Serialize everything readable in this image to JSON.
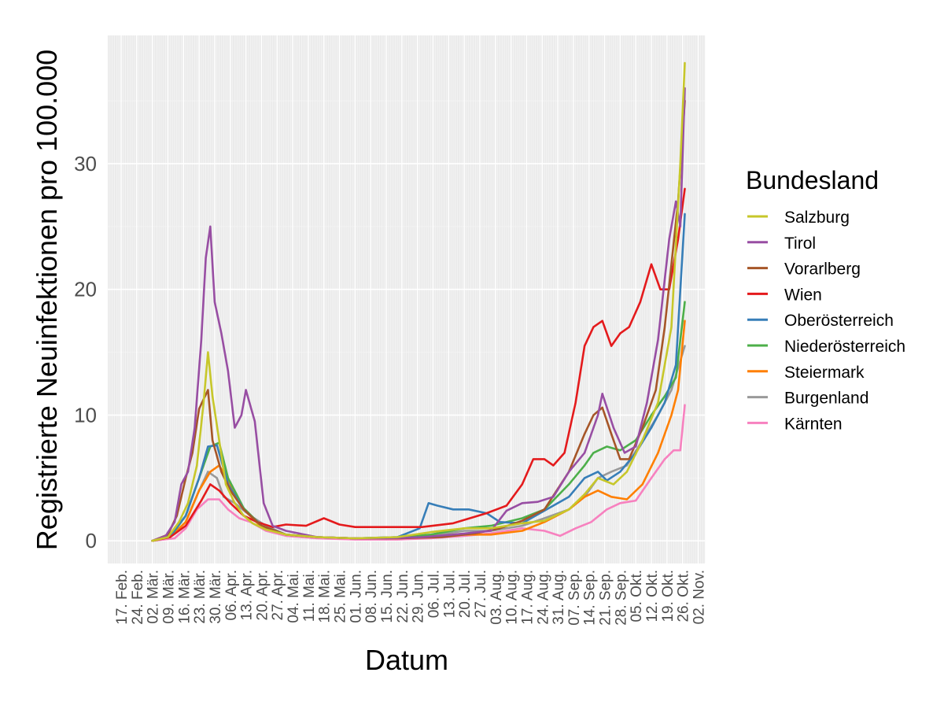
{
  "chart_data": {
    "type": "line",
    "title": "",
    "xlabel": "Datum",
    "ylabel": "Registrierte Neuinfektionen pro 100.000",
    "ylim": [
      -1.8,
      40.2
    ],
    "yticks": [
      0,
      10,
      20,
      30
    ],
    "xlim": [
      "2020-02-11",
      "2020-11-05"
    ],
    "xtick_labels": [
      "17. Feb.",
      "24. Feb.",
      "02. Mär.",
      "09. Mär.",
      "16. Mär.",
      "23. Mär.",
      "30. Mär.",
      "06. Apr.",
      "13. Apr.",
      "20. Apr.",
      "27. Apr.",
      "04. Mai.",
      "11. Mai.",
      "18. Mai.",
      "25. Mai.",
      "01. Jun.",
      "08. Jun.",
      "15. Jun.",
      "22. Jun.",
      "29. Jun.",
      "06. Jul.",
      "13. Jul.",
      "20. Jul.",
      "27. Jul.",
      "03. Aug.",
      "10. Aug.",
      "17. Aug.",
      "24. Aug.",
      "31. Aug.",
      "07. Sep.",
      "14. Sep.",
      "21. Sep.",
      "28. Sep.",
      "05. Okt.",
      "12. Okt.",
      "19. Okt.",
      "26. Okt.",
      "02. Nov."
    ],
    "xtick_dates": [
      "2020-02-17",
      "2020-02-24",
      "2020-03-02",
      "2020-03-09",
      "2020-03-16",
      "2020-03-23",
      "2020-03-30",
      "2020-04-06",
      "2020-04-13",
      "2020-04-20",
      "2020-04-27",
      "2020-05-04",
      "2020-05-11",
      "2020-05-18",
      "2020-05-25",
      "2020-06-01",
      "2020-06-08",
      "2020-06-15",
      "2020-06-22",
      "2020-06-29",
      "2020-07-06",
      "2020-07-13",
      "2020-07-20",
      "2020-07-27",
      "2020-08-03",
      "2020-08-10",
      "2020-08-17",
      "2020-08-24",
      "2020-08-31",
      "2020-09-07",
      "2020-09-14",
      "2020-09-21",
      "2020-09-28",
      "2020-10-05",
      "2020-10-12",
      "2020-10-19",
      "2020-10-26",
      "2020-11-02"
    ],
    "grid": true,
    "legend": {
      "title": "Bundesland",
      "position": "right"
    },
    "series": [
      {
        "name": "Salzburg",
        "color": "#c7c72a",
        "x": [
          "2020-03-02",
          "2020-03-09",
          "2020-03-14",
          "2020-03-18",
          "2020-03-22",
          "2020-03-25",
          "2020-03-27",
          "2020-03-29",
          "2020-04-01",
          "2020-04-04",
          "2020-04-08",
          "2020-04-12",
          "2020-04-16",
          "2020-04-22",
          "2020-05-01",
          "2020-05-15",
          "2020-06-01",
          "2020-06-20",
          "2020-07-05",
          "2020-07-20",
          "2020-08-01",
          "2020-08-15",
          "2020-08-25",
          "2020-09-05",
          "2020-09-12",
          "2020-09-18",
          "2020-09-25",
          "2020-10-01",
          "2020-10-08",
          "2020-10-15",
          "2020-10-21",
          "2020-10-25",
          "2020-10-27"
        ],
        "y": [
          0,
          0.3,
          1.5,
          3,
          6,
          11,
          15,
          11.5,
          8,
          4.5,
          3,
          2,
          1.4,
          0.9,
          0.5,
          0.3,
          0.2,
          0.3,
          0.7,
          1,
          1,
          1.4,
          1.6,
          2.5,
          3.7,
          5,
          4.5,
          5.5,
          8,
          11,
          17,
          30,
          38
        ]
      },
      {
        "name": "Tirol",
        "color": "#984ea3",
        "x": [
          "2020-03-02",
          "2020-03-08",
          "2020-03-12",
          "2020-03-15",
          "2020-03-18",
          "2020-03-21",
          "2020-03-24",
          "2020-03-26",
          "2020-03-28",
          "2020-03-30",
          "2020-04-02",
          "2020-04-05",
          "2020-04-08",
          "2020-04-11",
          "2020-04-13",
          "2020-04-17",
          "2020-04-21",
          "2020-04-25",
          "2020-05-01",
          "2020-05-15",
          "2020-06-01",
          "2020-06-15",
          "2020-07-01",
          "2020-07-15",
          "2020-08-01",
          "2020-08-08",
          "2020-08-15",
          "2020-08-22",
          "2020-08-29",
          "2020-09-05",
          "2020-09-12",
          "2020-09-18",
          "2020-09-20",
          "2020-09-25",
          "2020-09-30",
          "2020-10-05",
          "2020-10-10",
          "2020-10-15",
          "2020-10-20",
          "2020-10-23",
          "2020-10-25",
          "2020-10-27"
        ],
        "y": [
          0,
          0.4,
          1.5,
          4.5,
          5.5,
          9,
          16,
          22.5,
          25,
          19,
          16.5,
          13.5,
          9,
          10,
          12,
          9.5,
          3,
          1.2,
          0.8,
          0.3,
          0.2,
          0.2,
          0.3,
          0.5,
          0.8,
          2.4,
          3,
          3.1,
          3.5,
          5.5,
          7,
          10,
          11.7,
          9,
          7,
          7.5,
          11,
          16,
          24,
          27,
          25,
          36
        ]
      },
      {
        "name": "Vorarlberg",
        "color": "#a65628",
        "x": [
          "2020-03-02",
          "2020-03-09",
          "2020-03-13",
          "2020-03-17",
          "2020-03-20",
          "2020-03-23",
          "2020-03-27",
          "2020-03-29",
          "2020-04-02",
          "2020-04-06",
          "2020-04-12",
          "2020-04-20",
          "2020-05-01",
          "2020-05-15",
          "2020-06-01",
          "2020-06-20",
          "2020-07-10",
          "2020-07-25",
          "2020-08-05",
          "2020-08-15",
          "2020-08-25",
          "2020-09-05",
          "2020-09-12",
          "2020-09-16",
          "2020-09-20",
          "2020-09-24",
          "2020-09-28",
          "2020-10-02",
          "2020-10-08",
          "2020-10-14",
          "2020-10-18",
          "2020-10-21",
          "2020-10-24",
          "2020-10-27"
        ],
        "y": [
          0,
          0.5,
          2,
          5,
          7,
          10.5,
          12,
          8,
          5.5,
          4,
          2.5,
          1.2,
          0.5,
          0.3,
          0.2,
          0.2,
          0.3,
          0.6,
          1,
          1.6,
          2.5,
          5.5,
          8.5,
          10,
          10.6,
          8.5,
          6.5,
          6.5,
          9,
          12,
          17,
          22,
          27,
          35
        ]
      },
      {
        "name": "Wien",
        "color": "#e41a1c",
        "x": [
          "2020-03-02",
          "2020-03-10",
          "2020-03-17",
          "2020-03-24",
          "2020-03-28",
          "2020-04-01",
          "2020-04-06",
          "2020-04-12",
          "2020-04-18",
          "2020-04-25",
          "2020-05-01",
          "2020-05-10",
          "2020-05-18",
          "2020-05-25",
          "2020-06-01",
          "2020-06-15",
          "2020-06-25",
          "2020-07-01",
          "2020-07-15",
          "2020-07-30",
          "2020-08-08",
          "2020-08-15",
          "2020-08-20",
          "2020-08-25",
          "2020-08-29",
          "2020-09-03",
          "2020-09-08",
          "2020-09-12",
          "2020-09-16",
          "2020-09-20",
          "2020-09-24",
          "2020-09-28",
          "2020-10-02",
          "2020-10-07",
          "2020-10-12",
          "2020-10-16",
          "2020-10-20",
          "2020-10-24",
          "2020-10-27"
        ],
        "y": [
          0,
          0.3,
          1.2,
          3.2,
          4.5,
          4,
          3,
          2,
          1.5,
          1.1,
          1.3,
          1.2,
          1.8,
          1.3,
          1.1,
          1.1,
          1.1,
          1.1,
          1.4,
          2.2,
          2.8,
          4.5,
          6.5,
          6.5,
          6,
          7,
          11,
          15.5,
          17,
          17.5,
          15.5,
          16.5,
          17,
          19,
          22,
          20,
          20,
          24,
          28
        ]
      },
      {
        "name": "Oberösterreich",
        "color": "#377eb8",
        "x": [
          "2020-03-02",
          "2020-03-10",
          "2020-03-17",
          "2020-03-23",
          "2020-03-27",
          "2020-03-31",
          "2020-04-05",
          "2020-04-12",
          "2020-04-20",
          "2020-05-01",
          "2020-05-15",
          "2020-06-01",
          "2020-06-20",
          "2020-06-30",
          "2020-07-04",
          "2020-07-08",
          "2020-07-15",
          "2020-07-22",
          "2020-07-30",
          "2020-08-05",
          "2020-08-15",
          "2020-08-25",
          "2020-09-05",
          "2020-09-12",
          "2020-09-18",
          "2020-09-22",
          "2020-09-28",
          "2020-10-05",
          "2020-10-12",
          "2020-10-18",
          "2020-10-23",
          "2020-10-27"
        ],
        "y": [
          0,
          0.4,
          2,
          5,
          7.5,
          7.6,
          4.5,
          2.5,
          1.2,
          0.5,
          0.3,
          0.2,
          0.3,
          1,
          3,
          2.8,
          2.5,
          2.5,
          2.2,
          1.5,
          1.4,
          2.4,
          3.5,
          5,
          5.5,
          4.8,
          5.5,
          7,
          9,
          11,
          14,
          26
        ]
      },
      {
        "name": "Niederösterreich",
        "color": "#4daf4a",
        "x": [
          "2020-03-02",
          "2020-03-10",
          "2020-03-17",
          "2020-03-23",
          "2020-03-28",
          "2020-04-01",
          "2020-04-05",
          "2020-04-12",
          "2020-04-20",
          "2020-05-01",
          "2020-05-15",
          "2020-06-01",
          "2020-06-20",
          "2020-07-05",
          "2020-07-20",
          "2020-08-01",
          "2020-08-15",
          "2020-08-25",
          "2020-09-05",
          "2020-09-12",
          "2020-09-16",
          "2020-09-22",
          "2020-09-28",
          "2020-10-05",
          "2020-10-12",
          "2020-10-18",
          "2020-10-23",
          "2020-10-27"
        ],
        "y": [
          0,
          0.3,
          2,
          5,
          7.5,
          7.8,
          5,
          2.6,
          1.2,
          0.5,
          0.3,
          0.2,
          0.3,
          0.5,
          1,
          1.2,
          1.8,
          2.5,
          4.5,
          6,
          7,
          7.5,
          7.2,
          8,
          10,
          11.5,
          13,
          19
        ]
      },
      {
        "name": "Steiermark",
        "color": "#ff7f00",
        "x": [
          "2020-03-02",
          "2020-03-10",
          "2020-03-17",
          "2020-03-23",
          "2020-03-28",
          "2020-04-01",
          "2020-04-06",
          "2020-04-12",
          "2020-04-20",
          "2020-05-01",
          "2020-05-15",
          "2020-06-01",
          "2020-06-20",
          "2020-07-05",
          "2020-07-20",
          "2020-08-01",
          "2020-08-15",
          "2020-08-25",
          "2020-09-05",
          "2020-09-12",
          "2020-09-18",
          "2020-09-24",
          "2020-10-01",
          "2020-10-08",
          "2020-10-15",
          "2020-10-21",
          "2020-10-24",
          "2020-10-27"
        ],
        "y": [
          0,
          0.3,
          1.5,
          4,
          5.5,
          6,
          4.5,
          2.5,
          1.1,
          0.5,
          0.3,
          0.2,
          0.2,
          0.3,
          0.5,
          0.5,
          0.8,
          1.5,
          2.5,
          3.5,
          4,
          3.5,
          3.3,
          4.5,
          7,
          10,
          12,
          17.5
        ]
      },
      {
        "name": "Burgenland",
        "color": "#999999",
        "x": [
          "2020-03-02",
          "2020-03-10",
          "2020-03-17",
          "2020-03-23",
          "2020-03-27",
          "2020-03-31",
          "2020-04-03",
          "2020-04-08",
          "2020-04-15",
          "2020-04-22",
          "2020-05-01",
          "2020-05-15",
          "2020-06-01",
          "2020-06-20",
          "2020-07-05",
          "2020-07-20",
          "2020-08-01",
          "2020-08-15",
          "2020-08-25",
          "2020-09-05",
          "2020-09-12",
          "2020-09-18",
          "2020-09-24",
          "2020-10-01",
          "2020-10-08",
          "2020-10-15",
          "2020-10-21",
          "2020-10-27"
        ],
        "y": [
          0,
          0.3,
          1.5,
          4,
          5.5,
          5,
          3.5,
          3,
          2,
          1.2,
          0.5,
          0.3,
          0.2,
          0.2,
          0.4,
          0.8,
          0.8,
          1.2,
          1.8,
          2.5,
          3.5,
          5,
          5.5,
          6,
          8,
          10,
          12,
          15.5
        ]
      },
      {
        "name": "Kärnten",
        "color": "#f781bf",
        "x": [
          "2020-03-02",
          "2020-03-12",
          "2020-03-17",
          "2020-03-22",
          "2020-03-27",
          "2020-04-01",
          "2020-04-05",
          "2020-04-10",
          "2020-04-15",
          "2020-04-22",
          "2020-05-01",
          "2020-05-15",
          "2020-06-01",
          "2020-06-20",
          "2020-07-05",
          "2020-07-20",
          "2020-08-01",
          "2020-08-15",
          "2020-08-25",
          "2020-09-01",
          "2020-09-08",
          "2020-09-15",
          "2020-09-22",
          "2020-09-28",
          "2020-10-05",
          "2020-10-12",
          "2020-10-18",
          "2020-10-22",
          "2020-10-25",
          "2020-10-27"
        ],
        "y": [
          0,
          0.2,
          1,
          2.5,
          3.3,
          3.3,
          2.5,
          1.8,
          1.5,
          0.8,
          0.4,
          0.2,
          0.1,
          0.1,
          0.2,
          0.4,
          0.6,
          1,
          0.8,
          0.4,
          1,
          1.5,
          2.5,
          3,
          3.2,
          5,
          6.5,
          7.2,
          7.2,
          10.8
        ]
      }
    ]
  }
}
